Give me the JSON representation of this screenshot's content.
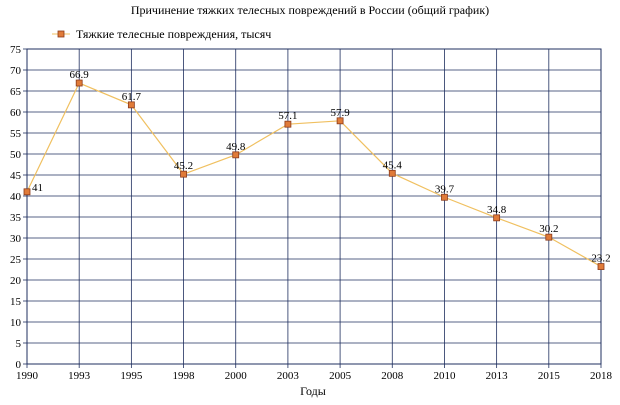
{
  "chart_data": {
    "type": "line",
    "title": "Причинение тяжких телесных повреждений в России (общий график)",
    "xlabel": "Годы",
    "ylabel": "",
    "categories": [
      "1990",
      "1993",
      "1995",
      "1998",
      "2000",
      "2003",
      "2005",
      "2008",
      "2010",
      "2013",
      "2015",
      "2018"
    ],
    "series": [
      {
        "name": "Тяжкие телесные повреждения, тысяч",
        "values": [
          41,
          66.9,
          61.7,
          45.2,
          49.8,
          57.1,
          57.9,
          45.4,
          39.7,
          34.8,
          30.2,
          23.2
        ],
        "labels": [
          "41",
          "66.9",
          "61.7",
          "45.2",
          "49.8",
          "57.1",
          "57.9",
          "45.4",
          "39.7",
          "34.8",
          "30.2",
          "23.2"
        ]
      }
    ],
    "ylim": [
      0,
      75
    ],
    "ytick_step": 5,
    "grid": true,
    "legend_position": "top-left",
    "colors": {
      "line": "#f0c060",
      "marker_fill": "#e07b39",
      "marker_stroke": "#8b3a1a",
      "grid": "#1f2f5f"
    }
  }
}
